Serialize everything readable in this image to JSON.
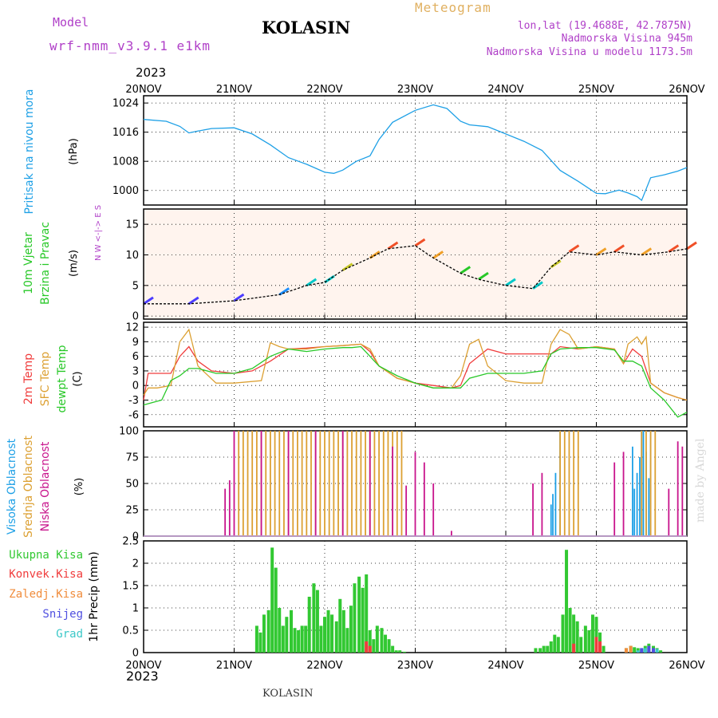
{
  "header": {
    "model_label": "Model",
    "model_name": "wrf-nmm_v3.9.1 e1km",
    "station": "KOLASIN",
    "meteogram": "Meteogram",
    "lonlat": "lon,lat (19.4688E, 42.7875N)",
    "elevation": "Nadmorska Visina 945m",
    "model_elevation": "Nadmorska Visina u modelu 1173.5m",
    "year_top": "2023",
    "year_bottom": "2023",
    "footer": "KOLASIN",
    "watermark": "made by Angel"
  },
  "colors": {
    "pressure": "#1ea0e6",
    "magenta": "#b040c8",
    "meteogram": "#e0b060",
    "t2m": "#f03c3c",
    "tsfc": "#dca032",
    "dewpt": "#28c828",
    "precip_total": "#32c832",
    "precip_conv": "#f03c3c",
    "precip_frozen": "#f08c3c",
    "snow": "#5050e0",
    "graupel": "#3cc8c8",
    "cloud_high": "#1ea0e6",
    "cloud_mid": "#dca032",
    "cloud_low": "#c8148c"
  },
  "chart_data": [
    {
      "type": "line",
      "panel": "pressure",
      "ylabel_name": "Pritisak na nivou mora",
      "ylabel_unit": "(hPa)",
      "x_ticks": [
        "20NOV",
        "21NOV",
        "22NOV",
        "23NOV",
        "24NOV",
        "25NOV",
        "26NOV"
      ],
      "ylim": [
        996,
        1026
      ],
      "y_ticks": [
        "1000",
        "1008",
        "1016",
        "1024"
      ],
      "grid": true,
      "series": [
        {
          "x": [
            0,
            0.25,
            0.4,
            0.5,
            0.6,
            0.75,
            1.0,
            1.2,
            1.4,
            1.6,
            1.8,
            2.0,
            2.1,
            2.2,
            2.35,
            2.5,
            2.6,
            2.75,
            3.0,
            3.2,
            3.35,
            3.5,
            3.6,
            3.8,
            4.0,
            4.2,
            4.4,
            4.6,
            4.8,
            5.0,
            5.1,
            5.25,
            5.35,
            5.45,
            5.5,
            5.6,
            5.75,
            5.9,
            6.0
          ],
          "values": [
            1019.5,
            1019,
            1017.6,
            1015.8,
            1016.3,
            1017,
            1017.2,
            1015.5,
            1012.5,
            1009,
            1007.2,
            1005,
            1004.7,
            1005.6,
            1008,
            1009.5,
            1014,
            1018.7,
            1022,
            1023.5,
            1022.5,
            1019,
            1018,
            1017.5,
            1015.5,
            1013.5,
            1011,
            1005.5,
            1002.5,
            999.2,
            999.1,
            1000.1,
            999.3,
            998.3,
            997.3,
            1003.5,
            1004.3,
            1005.3,
            1006.3
          ]
        }
      ]
    },
    {
      "type": "line",
      "panel": "wind",
      "ylabel_name": "10m Vjetar",
      "ylabel_sub": "Brzina i Pravac",
      "ylabel_unit": "(m/s)",
      "compass": "N W <-|-> E S",
      "ylim": [
        -0.5,
        17.5
      ],
      "y_ticks": [
        "0",
        "5",
        "10",
        "15"
      ],
      "grid": true,
      "series": [
        {
          "name": "speed",
          "x": [
            0,
            0.5,
            1.0,
            1.5,
            1.8,
            2.0,
            2.2,
            2.5,
            2.7,
            3.0,
            3.2,
            3.5,
            3.7,
            4.0,
            4.3,
            4.5,
            4.7,
            5.0,
            5.2,
            5.5,
            5.8,
            6.0
          ],
          "values": [
            2,
            2,
            2.5,
            3.5,
            5,
            5.5,
            7.5,
            9.5,
            11,
            11.5,
            9.5,
            7,
            6,
            5,
            4.5,
            8,
            10.5,
            10,
            10.5,
            10,
            10.5,
            11
          ]
        }
      ]
    },
    {
      "type": "line",
      "panel": "temperature",
      "ylabel_lines": [
        "2m Temp",
        "SFC Temp",
        "dewpt Temp"
      ],
      "ylabel_unit": "(C)",
      "ylim": [
        -8.5,
        13
      ],
      "y_ticks": [
        "-6",
        "-3",
        "0",
        "3",
        "6",
        "9",
        "12"
      ],
      "grid": true,
      "series": [
        {
          "name": "2m Temp",
          "x": [
            0,
            0.05,
            0.3,
            0.4,
            0.5,
            0.6,
            0.75,
            1.0,
            1.2,
            1.4,
            1.6,
            1.8,
            2.0,
            2.2,
            2.4,
            2.5,
            2.6,
            2.8,
            3.0,
            3.2,
            3.4,
            3.5,
            3.6,
            3.8,
            4.0,
            4.3,
            4.5,
            4.6,
            4.8,
            5.0,
            5.2,
            5.3,
            5.4,
            5.5,
            5.6,
            5.75,
            5.9,
            6.0
          ],
          "values": [
            -3,
            2.5,
            2.5,
            6,
            8,
            5,
            3,
            2.5,
            3,
            5,
            7.5,
            7.7,
            8,
            8.2,
            8.5,
            7,
            4,
            1.5,
            0.5,
            0,
            -0.5,
            0,
            4.5,
            7.5,
            6.5,
            6.5,
            6.5,
            8,
            7.5,
            8,
            7.5,
            4.5,
            7.5,
            6,
            0.5,
            -1.5,
            -2.5,
            -3
          ]
        },
        {
          "name": "SFC Temp",
          "x": [
            0,
            0.05,
            0.15,
            0.3,
            0.4,
            0.5,
            0.6,
            0.8,
            1.0,
            1.3,
            1.4,
            1.5,
            1.6,
            1.8,
            2.0,
            2.2,
            2.4,
            2.5,
            2.6,
            2.8,
            3.0,
            3.2,
            3.4,
            3.5,
            3.6,
            3.7,
            3.8,
            4.0,
            4.2,
            4.4,
            4.5,
            4.6,
            4.7,
            4.8,
            5.0,
            5.2,
            5.3,
            5.35,
            5.45,
            5.5,
            5.55,
            5.6,
            5.75,
            5.9,
            6.0
          ],
          "values": [
            -2,
            -0.5,
            -0.5,
            0,
            9,
            11.5,
            4,
            0.5,
            0.5,
            1,
            8.8,
            8,
            7.5,
            7.5,
            8,
            8.2,
            8.5,
            7.5,
            4,
            1.5,
            0.5,
            -0.5,
            -0.5,
            2,
            8.5,
            9.5,
            4,
            1,
            0.5,
            0.5,
            8.5,
            11.5,
            10.5,
            7.5,
            8,
            7.5,
            4.5,
            8.5,
            10,
            8.5,
            10,
            0.5,
            -1.5,
            -2.5,
            -3
          ]
        },
        {
          "name": "dewpt Temp",
          "x": [
            0,
            0.1,
            0.2,
            0.3,
            0.4,
            0.5,
            0.6,
            0.8,
            1.0,
            1.2,
            1.4,
            1.6,
            1.8,
            2.0,
            2.2,
            2.3,
            2.4,
            2.5,
            2.6,
            2.8,
            3.0,
            3.2,
            3.4,
            3.5,
            3.6,
            3.8,
            4.0,
            4.2,
            4.4,
            4.5,
            4.6,
            4.8,
            5.0,
            5.2,
            5.3,
            5.4,
            5.5,
            5.6,
            5.75,
            5.9,
            6.0
          ],
          "values": [
            -4,
            -3.5,
            -3,
            1,
            2,
            3.5,
            3.5,
            2.5,
            2.5,
            3.5,
            6,
            7.5,
            7,
            7.5,
            7.8,
            7.8,
            8,
            6,
            4,
            2,
            0.5,
            -0.5,
            -0.5,
            -0.5,
            1.5,
            2.5,
            2.5,
            2.5,
            3,
            6.5,
            7.5,
            7.8,
            7.8,
            7.3,
            5,
            5,
            4,
            -0.5,
            -3,
            -6.5,
            -5.5
          ]
        }
      ]
    },
    {
      "type": "bar",
      "panel": "clouds",
      "ylabel_lines": [
        "Visoka Oblacnost",
        "Srednja Oblacnost",
        "Niska Oblacnost"
      ],
      "ylabel_unit": "(%)",
      "ylim": [
        0,
        100
      ],
      "y_ticks": [
        "0",
        "25",
        "50",
        "75",
        "100"
      ],
      "grid": true,
      "series": [
        {
          "name": "Visoka Oblacnost",
          "x": [
            4.5,
            4.52,
            4.55,
            4.6,
            5.4,
            5.42,
            5.45,
            5.48,
            5.5,
            5.52,
            5.55,
            5.58,
            5.6
          ],
          "values": [
            30,
            40,
            60,
            100,
            85,
            45,
            60,
            75,
            100,
            100,
            80,
            55,
            100
          ]
        },
        {
          "name": "Srednja Oblacnost",
          "x": [
            1.05,
            1.1,
            1.15,
            1.2,
            1.25,
            1.3,
            1.35,
            1.4,
            1.45,
            1.5,
            1.55,
            1.6,
            1.65,
            1.7,
            1.75,
            1.8,
            1.85,
            1.9,
            1.95,
            2.0,
            2.05,
            2.1,
            2.15,
            2.2,
            2.25,
            2.3,
            2.35,
            2.4,
            2.45,
            2.5,
            2.55,
            2.6,
            2.65,
            2.7,
            2.75,
            2.8,
            2.85,
            4.6,
            4.65,
            4.7,
            4.75,
            4.8,
            5.5,
            5.55,
            5.6,
            5.65
          ],
          "values": [
            100,
            100,
            100,
            100,
            100,
            100,
            100,
            100,
            100,
            100,
            100,
            100,
            100,
            100,
            100,
            100,
            100,
            100,
            100,
            100,
            100,
            100,
            100,
            100,
            100,
            100,
            100,
            100,
            100,
            100,
            100,
            100,
            100,
            100,
            100,
            100,
            100,
            100,
            100,
            100,
            100,
            100,
            100,
            100,
            100,
            100
          ]
        },
        {
          "name": "Niska Oblacnost",
          "x": [
            0.9,
            0.95,
            1.0,
            1.3,
            1.6,
            1.9,
            2.2,
            2.5,
            2.75,
            2.9,
            3.0,
            3.1,
            3.2,
            3.4,
            4.3,
            4.4,
            5.2,
            5.3,
            5.8,
            5.9,
            5.95
          ],
          "values": [
            45,
            53,
            100,
            100,
            100,
            100,
            100,
            100,
            85,
            48,
            80,
            70,
            50,
            5,
            50,
            60,
            70,
            80,
            45,
            90,
            85
          ]
        }
      ]
    },
    {
      "type": "bar",
      "panel": "precipitation",
      "ylabel_lines": [
        "Ukupna Kisa",
        "Konvek.Kisa",
        "Zaledj.Kisa",
        "Snijeg",
        "Grad"
      ],
      "ylabel_unit": "1hr Precip (mm)",
      "ylim": [
        0,
        2.5
      ],
      "y_ticks": [
        "0",
        "0.5",
        "1",
        "1.5",
        "2",
        "2.5"
      ],
      "x_ticks": [
        "20NOV",
        "21NOV",
        "22NOV",
        "23NOV",
        "24NOV",
        "25NOV",
        "26NOV"
      ],
      "grid": true,
      "series": [
        {
          "name": "Ukupna Kisa",
          "x": [
            1.25,
            1.29,
            1.33,
            1.38,
            1.42,
            1.46,
            1.5,
            1.54,
            1.58,
            1.63,
            1.67,
            1.71,
            1.75,
            1.79,
            1.83,
            1.88,
            1.92,
            1.96,
            2.0,
            2.04,
            2.08,
            2.13,
            2.17,
            2.21,
            2.25,
            2.29,
            2.33,
            2.38,
            2.42,
            2.46,
            2.5,
            2.54,
            2.58,
            2.63,
            2.67,
            2.71,
            2.75,
            2.79,
            2.83,
            2.88,
            4.33,
            4.38,
            4.42,
            4.46,
            4.5,
            4.54,
            4.58,
            4.63,
            4.67,
            4.71,
            4.75,
            4.79,
            4.83,
            4.88,
            4.92,
            4.96,
            5.0,
            5.04,
            5.08,
            5.33,
            5.38,
            5.42,
            5.46,
            5.5,
            5.54,
            5.58,
            5.63,
            5.67,
            5.71
          ],
          "values": [
            0.6,
            0.45,
            0.85,
            0.95,
            2.35,
            1.9,
            1.0,
            0.6,
            0.8,
            0.95,
            0.55,
            0.5,
            0.6,
            0.6,
            1.25,
            1.55,
            1.4,
            0.6,
            0.8,
            0.95,
            0.85,
            0.7,
            1.2,
            0.95,
            0.55,
            1.05,
            1.55,
            1.7,
            1.45,
            1.75,
            0.5,
            0.3,
            0.6,
            0.55,
            0.4,
            0.3,
            0.15,
            0.05,
            0.05,
            0.02,
            0.1,
            0.1,
            0.15,
            0.15,
            0.25,
            0.4,
            0.35,
            0.85,
            2.3,
            1.0,
            0.85,
            0.7,
            0.35,
            0.6,
            0.5,
            0.85,
            0.8,
            0.45,
            0.15,
            0.1,
            0.15,
            0.12,
            0.1,
            0.08,
            0.15,
            0.2,
            0.15,
            0.1,
            0.05
          ]
        },
        {
          "name": "Konvek.Kisa",
          "x": [
            2.46,
            2.5,
            4.75,
            5.0,
            5.04
          ],
          "values": [
            0.25,
            0.15,
            0.2,
            0.35,
            0.25
          ]
        },
        {
          "name": "Zaledj.Kisa",
          "x": [
            5.33,
            5.38
          ],
          "values": [
            0.1,
            0.15
          ]
        },
        {
          "name": "Snijeg",
          "x": [
            5.5,
            5.58,
            5.63
          ],
          "values": [
            0.1,
            0.15,
            0.1
          ]
        },
        {
          "name": "Grad",
          "x": [
            5.46,
            5.54,
            5.67
          ],
          "values": [
            0.05,
            0.1,
            0.08
          ]
        }
      ]
    }
  ]
}
